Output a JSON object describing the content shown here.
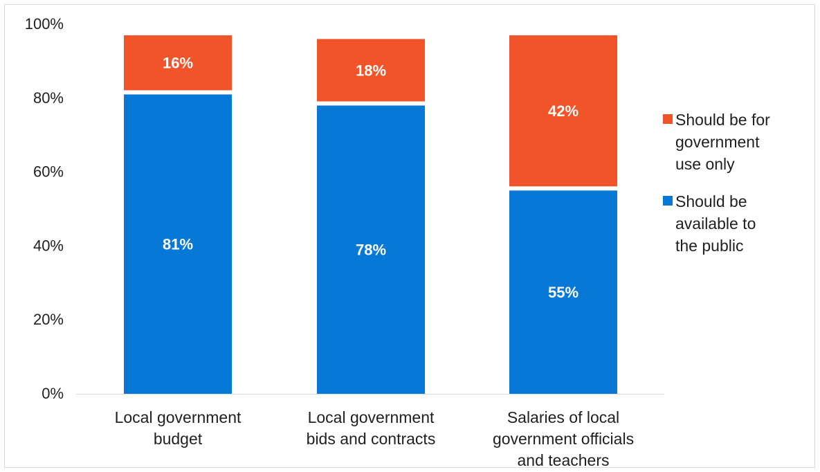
{
  "chart_data": {
    "type": "bar",
    "stacked": true,
    "categories": [
      [
        "Local government",
        "budget"
      ],
      [
        "Local government",
        "bids and contracts"
      ],
      [
        "Salaries of local",
        "government officials",
        "and teachers"
      ]
    ],
    "series": [
      {
        "name": [
          "Should be",
          "available to",
          "the public"
        ],
        "color": "#0878d7",
        "values": [
          81,
          78,
          55
        ],
        "labels": [
          "81%",
          "78%",
          "55%"
        ]
      },
      {
        "name": [
          "Should be for",
          "government",
          "use only"
        ],
        "color": "#f2542a",
        "values": [
          16,
          18,
          42
        ],
        "labels": [
          "16%",
          "18%",
          "42%"
        ]
      }
    ],
    "gap_between_segments": 3,
    "ylim": [
      0,
      100
    ],
    "yticks": [
      0,
      20,
      40,
      60,
      80,
      100
    ],
    "ytick_labels": [
      "0%",
      "20%",
      "40%",
      "60%",
      "80%",
      "100%"
    ],
    "grid": false,
    "legend_position": "right",
    "axis_color": "#d9d9d9"
  }
}
